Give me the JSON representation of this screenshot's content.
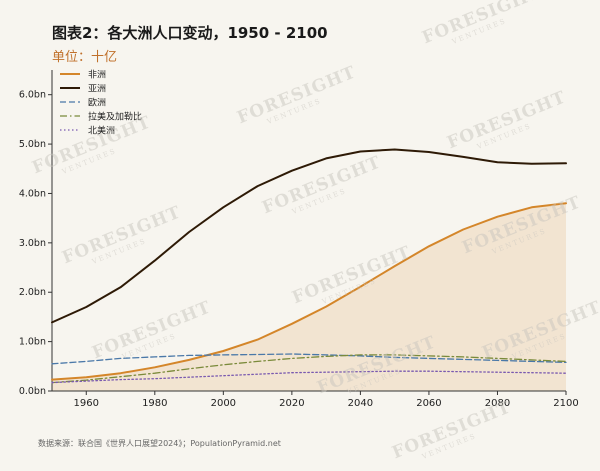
{
  "header": {
    "title": "图表2：各大洲人口变动，1950 - 2100",
    "unit": "单位：十亿"
  },
  "footer": {
    "source": "数据来源：联合国《世界人口展望2024》；PopulationPyramid.net"
  },
  "watermark": {
    "text": "FORESIGHT",
    "sub": "VENTURES"
  },
  "chart_data": {
    "type": "line",
    "x": [
      1950,
      1960,
      1970,
      1980,
      1990,
      2000,
      2010,
      2020,
      2030,
      2040,
      2050,
      2060,
      2070,
      2080,
      2090,
      2100
    ],
    "xticks": [
      1960,
      1980,
      2000,
      2020,
      2040,
      2060,
      2080,
      2100
    ],
    "xlim": [
      1950,
      2100
    ],
    "ylim": [
      0,
      6.5
    ],
    "yticks": [
      {
        "value": 0,
        "label": "0.0bn"
      },
      {
        "value": 1,
        "label": "1.0bn"
      },
      {
        "value": 2,
        "label": "2.0bn"
      },
      {
        "value": 3,
        "label": "3.0bn"
      },
      {
        "value": 4,
        "label": "4.0bn"
      },
      {
        "value": 5,
        "label": "5.0bn"
      },
      {
        "value": 6,
        "label": "6.0bn"
      }
    ],
    "legend_position": "top-left",
    "grid": false,
    "series": [
      {
        "name": "非洲",
        "color": "#d4862a",
        "style": "solid",
        "fill": true,
        "values": [
          0.23,
          0.28,
          0.36,
          0.48,
          0.63,
          0.81,
          1.04,
          1.36,
          1.71,
          2.11,
          2.53,
          2.93,
          3.27,
          3.53,
          3.72,
          3.8
        ]
      },
      {
        "name": "亚洲",
        "color": "#2e1a06",
        "style": "solid",
        "fill": false,
        "values": [
          1.39,
          1.7,
          2.1,
          2.64,
          3.22,
          3.72,
          4.15,
          4.46,
          4.71,
          4.85,
          4.89,
          4.84,
          4.74,
          4.63,
          4.6,
          4.61
        ]
      },
      {
        "name": "欧洲",
        "color": "#4a78a8",
        "style": "dashed",
        "fill": false,
        "values": [
          0.55,
          0.6,
          0.66,
          0.69,
          0.72,
          0.73,
          0.74,
          0.75,
          0.73,
          0.71,
          0.68,
          0.66,
          0.64,
          0.62,
          0.6,
          0.58
        ]
      },
      {
        "name": "拉美及加勒比",
        "color": "#7a8a3a",
        "style": "dashdot",
        "fill": false,
        "values": [
          0.17,
          0.22,
          0.29,
          0.36,
          0.45,
          0.53,
          0.6,
          0.66,
          0.7,
          0.73,
          0.73,
          0.71,
          0.69,
          0.66,
          0.63,
          0.6
        ]
      },
      {
        "name": "北美洲",
        "color": "#7a5ab0",
        "style": "dotted",
        "fill": false,
        "values": [
          0.17,
          0.2,
          0.23,
          0.25,
          0.28,
          0.31,
          0.34,
          0.37,
          0.38,
          0.39,
          0.4,
          0.4,
          0.39,
          0.38,
          0.37,
          0.36
        ]
      }
    ]
  }
}
